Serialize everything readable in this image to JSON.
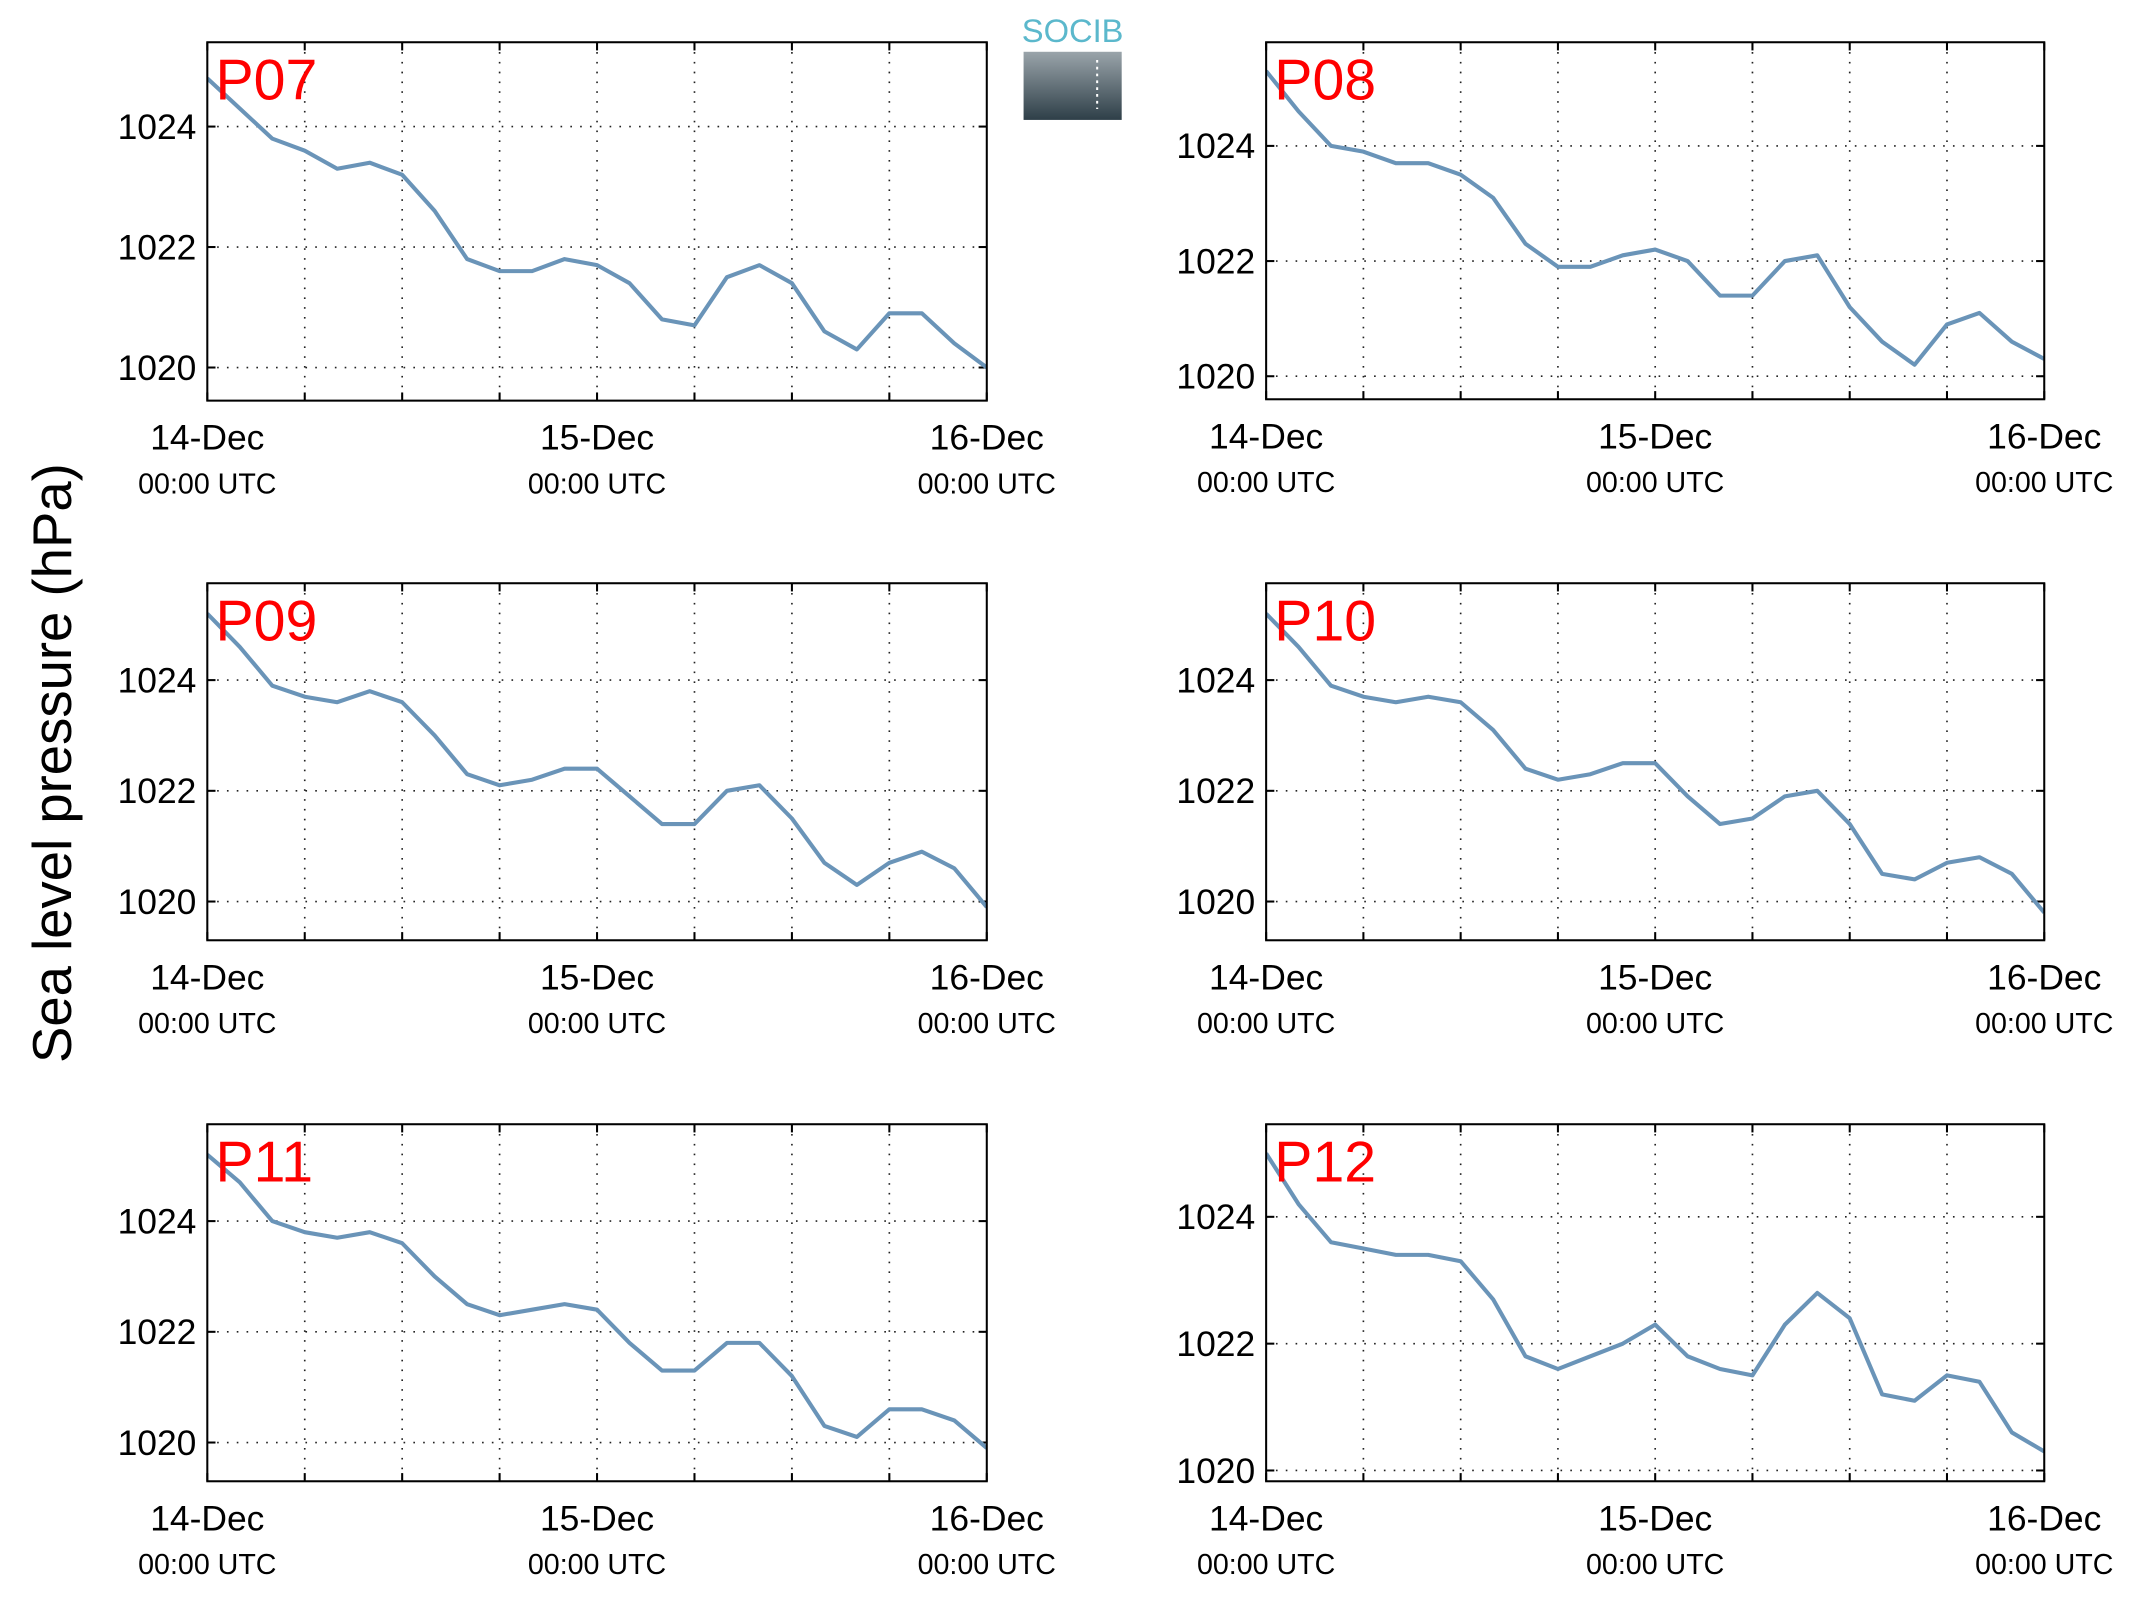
{
  "figure": {
    "ylabel": "Sea level pressure (hPa)",
    "logo": "SOCIB"
  },
  "chart_data": [
    {
      "type": "line",
      "title": "P07",
      "color": "#6a94b8",
      "grid": true,
      "x": [
        "14-Dec 00:00",
        "14-Dec 02:00",
        "14-Dec 04:00",
        "14-Dec 06:00",
        "14-Dec 08:00",
        "14-Dec 10:00",
        "14-Dec 12:00",
        "14-Dec 14:00",
        "14-Dec 16:00",
        "14-Dec 18:00",
        "14-Dec 20:00",
        "14-Dec 22:00",
        "15-Dec 00:00",
        "15-Dec 02:00",
        "15-Dec 04:00",
        "15-Dec 06:00",
        "15-Dec 08:00",
        "15-Dec 10:00",
        "15-Dec 12:00",
        "15-Dec 14:00",
        "15-Dec 16:00",
        "15-Dec 18:00",
        "15-Dec 20:00",
        "15-Dec 22:00",
        "16-Dec 00:00"
      ],
      "values": [
        1024.8,
        1024.3,
        1023.8,
        1023.6,
        1023.3,
        1023.4,
        1023.2,
        1022.6,
        1021.8,
        1021.6,
        1021.6,
        1021.8,
        1021.7,
        1021.4,
        1020.8,
        1020.7,
        1021.5,
        1021.7,
        1021.4,
        1020.6,
        1020.3,
        1020.9,
        1020.9,
        1020.4,
        1020.0
      ],
      "xlim": [
        "14-Dec 00:00",
        "16-Dec 00:00"
      ],
      "xticks": [
        {
          "value": "14-Dec 00:00",
          "label": "14-Dec",
          "sublabel": "00:00 UTC"
        },
        {
          "value": "14-Dec 06:00",
          "label": null
        },
        {
          "value": "14-Dec 12:00",
          "label": null
        },
        {
          "value": "14-Dec 18:00",
          "label": null
        },
        {
          "value": "15-Dec 00:00",
          "label": "15-Dec",
          "sublabel": "00:00 UTC"
        },
        {
          "value": "15-Dec 06:00",
          "label": null
        },
        {
          "value": "15-Dec 12:00",
          "label": null
        },
        {
          "value": "15-Dec 18:00",
          "label": null
        },
        {
          "value": "16-Dec 00:00",
          "label": "16-Dec",
          "sublabel": "00:00 UTC"
        }
      ],
      "ylim": [
        1019.45,
        1025.4
      ],
      "yticks": [
        1020,
        1022,
        1024
      ]
    },
    {
      "type": "line",
      "title": "P08",
      "color": "#6a94b8",
      "grid": true,
      "x": [
        "14-Dec 00:00",
        "14-Dec 02:00",
        "14-Dec 04:00",
        "14-Dec 06:00",
        "14-Dec 08:00",
        "14-Dec 10:00",
        "14-Dec 12:00",
        "14-Dec 14:00",
        "14-Dec 16:00",
        "14-Dec 18:00",
        "14-Dec 20:00",
        "14-Dec 22:00",
        "15-Dec 00:00",
        "15-Dec 02:00",
        "15-Dec 04:00",
        "15-Dec 06:00",
        "15-Dec 08:00",
        "15-Dec 10:00",
        "15-Dec 12:00",
        "15-Dec 14:00",
        "15-Dec 16:00",
        "15-Dec 18:00",
        "15-Dec 20:00",
        "15-Dec 22:00",
        "16-Dec 00:00"
      ],
      "values": [
        1025.3,
        1024.6,
        1024.0,
        1023.9,
        1023.7,
        1023.7,
        1023.5,
        1023.1,
        1022.3,
        1021.9,
        1021.9,
        1022.1,
        1022.2,
        1022.0,
        1021.4,
        1021.4,
        1022.0,
        1022.1,
        1021.2,
        1020.6,
        1020.2,
        1020.9,
        1021.1,
        1020.6,
        1020.3
      ],
      "xlim": [
        "14-Dec 00:00",
        "16-Dec 00:00"
      ],
      "xticks": [
        {
          "value": "14-Dec 00:00",
          "label": "14-Dec",
          "sublabel": "00:00 UTC"
        },
        {
          "value": "14-Dec 06:00",
          "label": null
        },
        {
          "value": "14-Dec 12:00",
          "label": null
        },
        {
          "value": "14-Dec 18:00",
          "label": null
        },
        {
          "value": "15-Dec 00:00",
          "label": "15-Dec",
          "sublabel": "00:00 UTC"
        },
        {
          "value": "15-Dec 06:00",
          "label": null
        },
        {
          "value": "15-Dec 12:00",
          "label": null
        },
        {
          "value": "15-Dec 18:00",
          "label": null
        },
        {
          "value": "16-Dec 00:00",
          "label": "16-Dec",
          "sublabel": "00:00 UTC"
        }
      ],
      "ylim": [
        1019.6,
        1025.8
      ],
      "yticks": [
        1020,
        1022,
        1024
      ]
    },
    {
      "type": "line",
      "title": "P09",
      "color": "#6a94b8",
      "grid": true,
      "x": [
        "14-Dec 00:00",
        "14-Dec 02:00",
        "14-Dec 04:00",
        "14-Dec 06:00",
        "14-Dec 08:00",
        "14-Dec 10:00",
        "14-Dec 12:00",
        "14-Dec 14:00",
        "14-Dec 16:00",
        "14-Dec 18:00",
        "14-Dec 20:00",
        "14-Dec 22:00",
        "15-Dec 00:00",
        "15-Dec 02:00",
        "15-Dec 04:00",
        "15-Dec 06:00",
        "15-Dec 08:00",
        "15-Dec 10:00",
        "15-Dec 12:00",
        "15-Dec 14:00",
        "15-Dec 16:00",
        "15-Dec 18:00",
        "15-Dec 20:00",
        "15-Dec 22:00",
        "16-Dec 00:00"
      ],
      "values": [
        1025.2,
        1024.6,
        1023.9,
        1023.7,
        1023.6,
        1023.8,
        1023.6,
        1023.0,
        1022.3,
        1022.1,
        1022.2,
        1022.4,
        1022.4,
        1021.9,
        1021.4,
        1021.4,
        1022.0,
        1022.1,
        1021.5,
        1020.7,
        1020.3,
        1020.7,
        1020.9,
        1020.6,
        1019.9
      ],
      "xlim": [
        "14-Dec 00:00",
        "16-Dec 00:00"
      ],
      "xticks": [
        {
          "value": "14-Dec 00:00",
          "label": "14-Dec",
          "sublabel": "00:00 UTC"
        },
        {
          "value": "14-Dec 06:00",
          "label": null
        },
        {
          "value": "14-Dec 12:00",
          "label": null
        },
        {
          "value": "14-Dec 18:00",
          "label": null
        },
        {
          "value": "15-Dec 00:00",
          "label": "15-Dec",
          "sublabel": "00:00 UTC"
        },
        {
          "value": "15-Dec 06:00",
          "label": null
        },
        {
          "value": "15-Dec 12:00",
          "label": null
        },
        {
          "value": "15-Dec 18:00",
          "label": null
        },
        {
          "value": "16-Dec 00:00",
          "label": "16-Dec",
          "sublabel": "00:00 UTC"
        }
      ],
      "ylim": [
        1019.3,
        1025.75
      ],
      "yticks": [
        1020,
        1022,
        1024
      ]
    },
    {
      "type": "line",
      "title": "P10",
      "color": "#6a94b8",
      "grid": true,
      "x": [
        "14-Dec 00:00",
        "14-Dec 02:00",
        "14-Dec 04:00",
        "14-Dec 06:00",
        "14-Dec 08:00",
        "14-Dec 10:00",
        "14-Dec 12:00",
        "14-Dec 14:00",
        "14-Dec 16:00",
        "14-Dec 18:00",
        "14-Dec 20:00",
        "14-Dec 22:00",
        "15-Dec 00:00",
        "15-Dec 02:00",
        "15-Dec 04:00",
        "15-Dec 06:00",
        "15-Dec 08:00",
        "15-Dec 10:00",
        "15-Dec 12:00",
        "15-Dec 14:00",
        "15-Dec 16:00",
        "15-Dec 18:00",
        "15-Dec 20:00",
        "15-Dec 22:00",
        "16-Dec 00:00"
      ],
      "values": [
        1025.2,
        1024.6,
        1023.9,
        1023.7,
        1023.6,
        1023.7,
        1023.6,
        1023.1,
        1022.4,
        1022.2,
        1022.3,
        1022.5,
        1022.5,
        1021.9,
        1021.4,
        1021.5,
        1021.9,
        1022.0,
        1021.4,
        1020.5,
        1020.4,
        1020.7,
        1020.8,
        1020.5,
        1019.8
      ],
      "xlim": [
        "14-Dec 00:00",
        "16-Dec 00:00"
      ],
      "xticks": [
        {
          "value": "14-Dec 00:00",
          "label": "14-Dec",
          "sublabel": "00:00 UTC"
        },
        {
          "value": "14-Dec 06:00",
          "label": null
        },
        {
          "value": "14-Dec 12:00",
          "label": null
        },
        {
          "value": "14-Dec 18:00",
          "label": null
        },
        {
          "value": "15-Dec 00:00",
          "label": "15-Dec",
          "sublabel": "00:00 UTC"
        },
        {
          "value": "15-Dec 06:00",
          "label": null
        },
        {
          "value": "15-Dec 12:00",
          "label": null
        },
        {
          "value": "15-Dec 18:00",
          "label": null
        },
        {
          "value": "16-Dec 00:00",
          "label": "16-Dec",
          "sublabel": "00:00 UTC"
        }
      ],
      "ylim": [
        1019.3,
        1025.75
      ],
      "yticks": [
        1020,
        1022,
        1024
      ]
    },
    {
      "type": "line",
      "title": "P11",
      "color": "#6a94b8",
      "grid": true,
      "x": [
        "14-Dec 00:00",
        "14-Dec 02:00",
        "14-Dec 04:00",
        "14-Dec 06:00",
        "14-Dec 08:00",
        "14-Dec 10:00",
        "14-Dec 12:00",
        "14-Dec 14:00",
        "14-Dec 16:00",
        "14-Dec 18:00",
        "14-Dec 20:00",
        "14-Dec 22:00",
        "15-Dec 00:00",
        "15-Dec 02:00",
        "15-Dec 04:00",
        "15-Dec 06:00",
        "15-Dec 08:00",
        "15-Dec 10:00",
        "15-Dec 12:00",
        "15-Dec 14:00",
        "15-Dec 16:00",
        "15-Dec 18:00",
        "15-Dec 20:00",
        "15-Dec 22:00",
        "16-Dec 00:00"
      ],
      "values": [
        1025.2,
        1024.7,
        1024.0,
        1023.8,
        1023.7,
        1023.8,
        1023.6,
        1023.0,
        1022.5,
        1022.3,
        1022.4,
        1022.5,
        1022.4,
        1021.8,
        1021.3,
        1021.3,
        1021.8,
        1021.8,
        1021.2,
        1020.3,
        1020.1,
        1020.6,
        1020.6,
        1020.4,
        1019.9
      ],
      "xlim": [
        "14-Dec 00:00",
        "16-Dec 00:00"
      ],
      "xticks": [
        {
          "value": "14-Dec 00:00",
          "label": "14-Dec",
          "sublabel": "00:00 UTC"
        },
        {
          "value": "14-Dec 06:00",
          "label": null
        },
        {
          "value": "14-Dec 12:00",
          "label": null
        },
        {
          "value": "14-Dec 18:00",
          "label": null
        },
        {
          "value": "15-Dec 00:00",
          "label": "15-Dec",
          "sublabel": "00:00 UTC"
        },
        {
          "value": "15-Dec 06:00",
          "label": null
        },
        {
          "value": "15-Dec 12:00",
          "label": null
        },
        {
          "value": "15-Dec 18:00",
          "label": null
        },
        {
          "value": "16-Dec 00:00",
          "label": "16-Dec",
          "sublabel": "00:00 UTC"
        }
      ],
      "ylim": [
        1019.3,
        1025.75
      ],
      "yticks": [
        1020,
        1022,
        1024
      ]
    },
    {
      "type": "line",
      "title": "P12",
      "color": "#6a94b8",
      "grid": true,
      "x": [
        "14-Dec 00:00",
        "14-Dec 02:00",
        "14-Dec 04:00",
        "14-Dec 06:00",
        "14-Dec 08:00",
        "14-Dec 10:00",
        "14-Dec 12:00",
        "14-Dec 14:00",
        "14-Dec 16:00",
        "14-Dec 18:00",
        "14-Dec 20:00",
        "14-Dec 22:00",
        "15-Dec 00:00",
        "15-Dec 02:00",
        "15-Dec 04:00",
        "15-Dec 06:00",
        "15-Dec 08:00",
        "15-Dec 10:00",
        "15-Dec 12:00",
        "15-Dec 14:00",
        "15-Dec 16:00",
        "15-Dec 18:00",
        "15-Dec 20:00",
        "15-Dec 22:00",
        "16-Dec 00:00"
      ],
      "values": [
        1025.0,
        1024.2,
        1023.6,
        1023.5,
        1023.4,
        1023.4,
        1023.3,
        1022.7,
        1021.8,
        1021.6,
        1021.8,
        1022.0,
        1022.3,
        1021.8,
        1021.6,
        1021.5,
        1022.3,
        1022.8,
        1022.4,
        1021.2,
        1021.1,
        1021.5,
        1021.4,
        1020.6,
        1020.3
      ],
      "xlim": [
        "14-Dec 00:00",
        "16-Dec 00:00"
      ],
      "xticks": [
        {
          "value": "14-Dec 00:00",
          "label": "14-Dec",
          "sublabel": "00:00 UTC"
        },
        {
          "value": "14-Dec 06:00",
          "label": null
        },
        {
          "value": "14-Dec 12:00",
          "label": null
        },
        {
          "value": "14-Dec 18:00",
          "label": null
        },
        {
          "value": "15-Dec 00:00",
          "label": "15-Dec",
          "sublabel": "00:00 UTC"
        },
        {
          "value": "15-Dec 06:00",
          "label": null
        },
        {
          "value": "15-Dec 12:00",
          "label": null
        },
        {
          "value": "15-Dec 18:00",
          "label": null
        },
        {
          "value": "16-Dec 00:00",
          "label": "16-Dec",
          "sublabel": "00:00 UTC"
        }
      ],
      "ylim": [
        1019.83,
        1025.46
      ],
      "yticks": [
        1020,
        1022,
        1024
      ]
    }
  ]
}
